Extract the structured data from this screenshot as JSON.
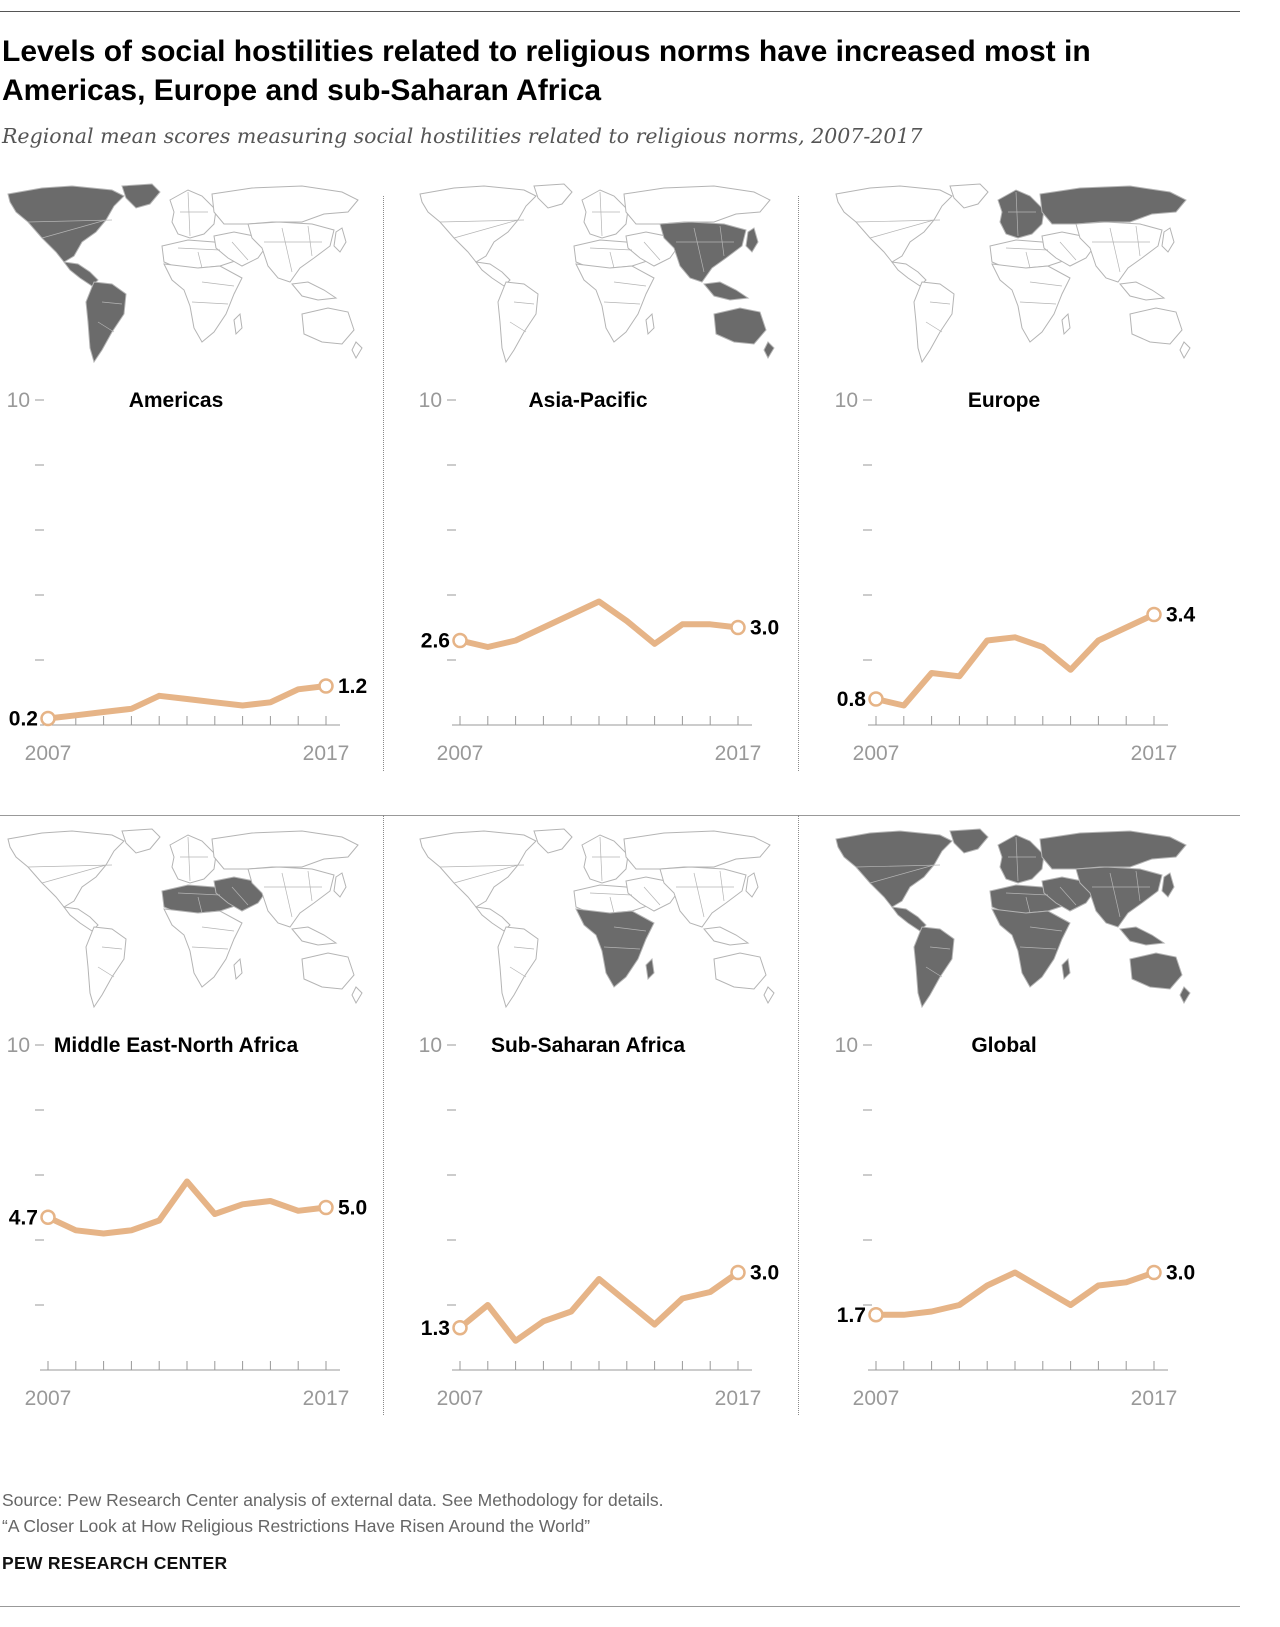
{
  "header": {
    "title": "Levels of social hostilities related to religious norms have increased most in Americas, Europe and sub-Saharan Africa",
    "subtitle": "Regional mean scores measuring social hostilities related to religious norms, 2007-2017"
  },
  "colors": {
    "line": "#e6b487",
    "map_highlight": "#6b6b6b",
    "map_base": "#ffffff",
    "map_stroke": "#b4b4b4",
    "tick": "#999999"
  },
  "chart_data": [
    {
      "type": "line",
      "title": "Americas",
      "x": [
        2007,
        2008,
        2009,
        2010,
        2011,
        2012,
        2013,
        2014,
        2015,
        2016,
        2017
      ],
      "values": [
        0.2,
        0.3,
        0.4,
        0.5,
        0.9,
        0.8,
        0.7,
        0.6,
        0.7,
        1.1,
        1.2
      ],
      "ylim": [
        0,
        10
      ],
      "x_tick_labels": [
        "2007",
        "2017"
      ],
      "y_tick_labels": [
        "10"
      ],
      "start_label": "0.2",
      "end_label": "1.2",
      "map_icon": "world-map-americas-highlighted"
    },
    {
      "type": "line",
      "title": "Asia-Pacific",
      "x": [
        2007,
        2008,
        2009,
        2010,
        2011,
        2012,
        2013,
        2014,
        2015,
        2016,
        2017
      ],
      "values": [
        2.6,
        2.4,
        2.6,
        3.0,
        3.4,
        3.8,
        3.2,
        2.5,
        3.1,
        3.1,
        3.0
      ],
      "ylim": [
        0,
        10
      ],
      "x_tick_labels": [
        "2007",
        "2017"
      ],
      "y_tick_labels": [
        "10"
      ],
      "start_label": "2.6",
      "end_label": "3.0",
      "map_icon": "world-map-asia-pacific-highlighted"
    },
    {
      "type": "line",
      "title": "Europe",
      "x": [
        2007,
        2008,
        2009,
        2010,
        2011,
        2012,
        2013,
        2014,
        2015,
        2016,
        2017
      ],
      "values": [
        0.8,
        0.6,
        1.6,
        1.5,
        2.6,
        2.7,
        2.4,
        1.7,
        2.6,
        3.0,
        3.4
      ],
      "ylim": [
        0,
        10
      ],
      "x_tick_labels": [
        "2007",
        "2017"
      ],
      "y_tick_labels": [
        "10"
      ],
      "start_label": "0.8",
      "end_label": "3.4",
      "map_icon": "world-map-europe-highlighted"
    },
    {
      "type": "line",
      "title": "Middle East-North Africa",
      "x": [
        2007,
        2008,
        2009,
        2010,
        2011,
        2012,
        2013,
        2014,
        2015,
        2016,
        2017
      ],
      "values": [
        4.7,
        4.3,
        4.2,
        4.3,
        4.6,
        5.8,
        4.8,
        5.1,
        5.2,
        4.9,
        5.0
      ],
      "ylim": [
        0,
        10
      ],
      "x_tick_labels": [
        "2007",
        "2017"
      ],
      "y_tick_labels": [
        "10"
      ],
      "start_label": "4.7",
      "end_label": "5.0",
      "map_icon": "world-map-middle-east-north-africa-highlighted"
    },
    {
      "type": "line",
      "title": "Sub-Saharan Africa",
      "x": [
        2007,
        2008,
        2009,
        2010,
        2011,
        2012,
        2013,
        2014,
        2015,
        2016,
        2017
      ],
      "values": [
        1.3,
        2.0,
        0.9,
        1.5,
        1.8,
        2.8,
        2.1,
        1.4,
        2.2,
        2.4,
        3.0
      ],
      "ylim": [
        0,
        10
      ],
      "x_tick_labels": [
        "2007",
        "2017"
      ],
      "y_tick_labels": [
        "10"
      ],
      "start_label": "1.3",
      "end_label": "3.0",
      "map_icon": "world-map-sub-saharan-africa-highlighted"
    },
    {
      "type": "line",
      "title": "Global",
      "x": [
        2007,
        2008,
        2009,
        2010,
        2011,
        2012,
        2013,
        2014,
        2015,
        2016,
        2017
      ],
      "values": [
        1.7,
        1.7,
        1.8,
        2.0,
        2.6,
        3.0,
        2.5,
        2.0,
        2.6,
        2.7,
        3.0
      ],
      "ylim": [
        0,
        10
      ],
      "x_tick_labels": [
        "2007",
        "2017"
      ],
      "y_tick_labels": [
        "10"
      ],
      "start_label": "1.7",
      "end_label": "3.0",
      "map_icon": "world-map-global-highlighted"
    }
  ],
  "footer": {
    "source": "Source: Pew Research Center analysis of external data. See Methodology for details.",
    "report": "“A Closer Look at How Religious Restrictions Have Risen Around the World”",
    "brand": "PEW RESEARCH CENTER"
  }
}
